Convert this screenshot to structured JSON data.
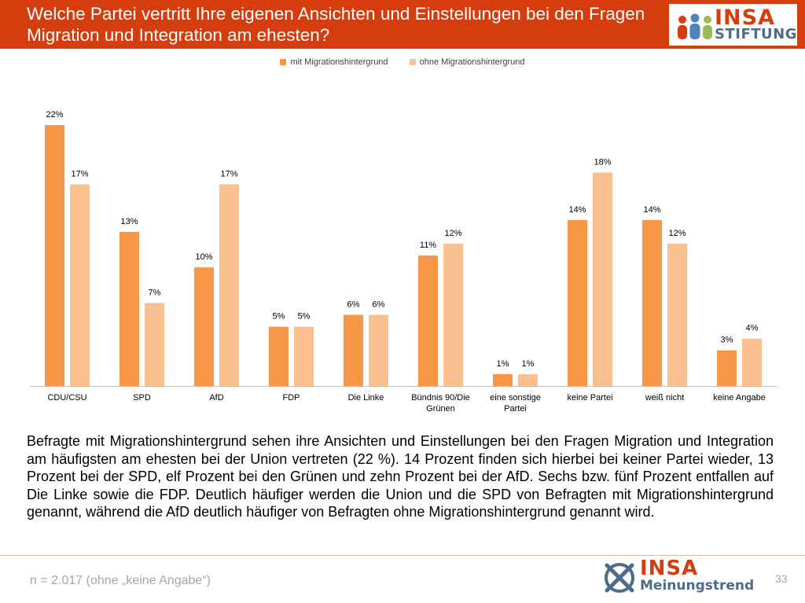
{
  "header": {
    "title": "Welche Partei vertritt Ihre eigenen Ansichten und Einstellungen bei den Fragen Migration und Integration am ehesten?",
    "bg_color": "#d53d0f"
  },
  "logo_top": {
    "brand": "INSA",
    "subtitle": "STIFTUNG"
  },
  "chart_data": {
    "type": "bar",
    "categories": [
      [
        "CDU/CSU"
      ],
      [
        "SPD"
      ],
      [
        "AfD"
      ],
      [
        "FDP"
      ],
      [
        "Die Linke"
      ],
      [
        "Bündnis 90/Die",
        "Grünen"
      ],
      [
        "eine sonstige",
        "Partei"
      ],
      [
        "keine Partei"
      ],
      [
        "weiß nicht"
      ],
      [
        "keine Angabe"
      ]
    ],
    "series": [
      {
        "name": "mit Migrationshintergrund",
        "color": "#f79646",
        "values": [
          22,
          13,
          10,
          5,
          6,
          11,
          1,
          14,
          14,
          3
        ]
      },
      {
        "name": "ohne Migrationshintergrund",
        "color": "#fac090",
        "values": [
          17,
          7,
          17,
          5,
          6,
          12,
          1,
          18,
          12,
          4
        ]
      }
    ],
    "value_suffix": "%",
    "legend_position": "top-center",
    "grid": false,
    "ylim": [
      0,
      23
    ]
  },
  "body_text": "Befragte mit Migrationshintergrund sehen ihre Ansichten und Einstellungen bei den Fragen Migration und Integration am häufigsten am ehesten bei der Union vertreten (22 %). 14 Prozent finden sich hierbei bei keiner Partei wieder, 13 Prozent bei der SPD, elf Prozent bei den Grünen und zehn Prozent bei der AfD. Sechs bzw. fünf Prozent entfallen auf Die Linke sowie die FDP. Deutlich häufiger werden die Union und die SPD von Befragten mit Migrationshintergrund genannt, während die AfD deutlich häufiger von Befragten ohne Migrationshintergrund genannt wird.",
  "footer": {
    "sample_note": "n = 2.017 (ohne „keine Angabe“)",
    "brand": "INSA",
    "brand_sub": "Meinungstrend",
    "page_number": "33"
  }
}
